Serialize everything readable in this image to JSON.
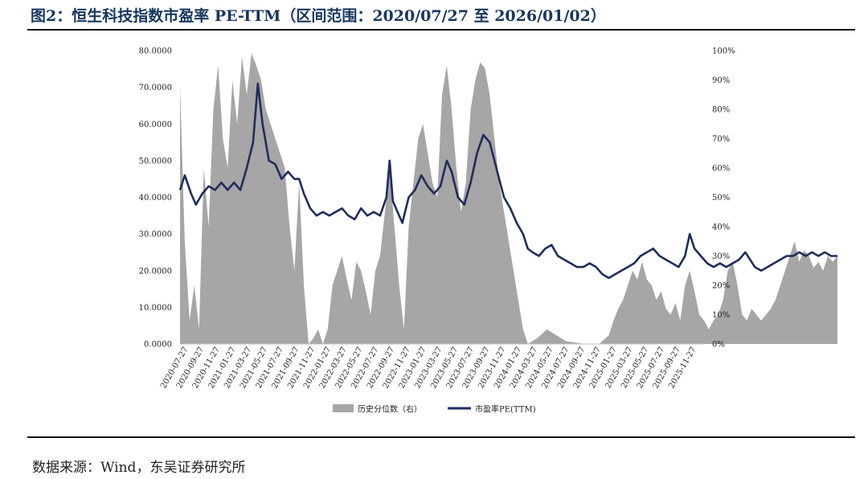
{
  "header": {
    "title": "图2：恒生科技指数市盈率 PE-TTM（区间范围：2020/07/27 至 2026/01/02）"
  },
  "footer": {
    "source": "数据来源：Wind，东吴证券研究所"
  },
  "chart_data": {
    "type": "line+area",
    "title": "恒生科技指数市盈率 PE-TTM（区间范围：2020/07/27 至 2026/01/02）",
    "ylim_left": [
      0,
      80
    ],
    "ylim_right": [
      0,
      100
    ],
    "left_ticks": [
      "0.0000",
      "10.0000",
      "20.0000",
      "30.0000",
      "40.0000",
      "50.0000",
      "60.0000",
      "70.0000",
      "80.0000"
    ],
    "right_ticks": [
      "0%",
      "10%",
      "20%",
      "30%",
      "40%",
      "50%",
      "60%",
      "70%",
      "80%",
      "90%",
      "100%"
    ],
    "x_ticks": [
      "2020-07-27",
      "2020-09-27",
      "2020-11-27",
      "2021-01-27",
      "2021-03-27",
      "2021-05-27",
      "2021-07-27",
      "2021-09-27",
      "2021-11-27",
      "2022-01-27",
      "2022-03-27",
      "2022-05-27",
      "2022-07-27",
      "2022-09-27",
      "2022-11-27",
      "2023-01-27",
      "2023-03-27",
      "2023-05-27",
      "2023-07-27",
      "2023-09-27",
      "2023-11-27",
      "2024-01-27",
      "2024-03-27",
      "2024-05-27",
      "2024-07-27",
      "2024-09-27",
      "2024-11-27",
      "2025-01-27",
      "2025-03-27",
      "2025-05-27",
      "2025-07-27",
      "2025-09-27",
      "2025-11-27"
    ],
    "legend": [
      "历史分位数（右）",
      "市盈率PE(TTM)"
    ],
    "series": [
      {
        "name": "市盈率PE(TTM)",
        "axis": "left",
        "color": "#1f2d5c",
        "points": [
          [
            0,
            42
          ],
          [
            0.3,
            46
          ],
          [
            0.7,
            41
          ],
          [
            1.0,
            38
          ],
          [
            1.4,
            41
          ],
          [
            1.8,
            43
          ],
          [
            2.2,
            42
          ],
          [
            2.6,
            44
          ],
          [
            3.0,
            42
          ],
          [
            3.4,
            44
          ],
          [
            3.8,
            42
          ],
          [
            4.2,
            48
          ],
          [
            4.6,
            55
          ],
          [
            4.9,
            71
          ],
          [
            5.2,
            60
          ],
          [
            5.6,
            50
          ],
          [
            6.0,
            49
          ],
          [
            6.4,
            45
          ],
          [
            6.8,
            47
          ],
          [
            7.2,
            45
          ],
          [
            7.5,
            45
          ],
          [
            7.8,
            41
          ],
          [
            8.2,
            37
          ],
          [
            8.6,
            35
          ],
          [
            9.0,
            36
          ],
          [
            9.4,
            35
          ],
          [
            9.8,
            36
          ],
          [
            10.2,
            37
          ],
          [
            10.6,
            35
          ],
          [
            11.0,
            34
          ],
          [
            11.4,
            37
          ],
          [
            11.8,
            35
          ],
          [
            12.2,
            36
          ],
          [
            12.6,
            35
          ],
          [
            13.0,
            40
          ],
          [
            13.2,
            50
          ],
          [
            13.4,
            39
          ],
          [
            13.7,
            36
          ],
          [
            14.0,
            33
          ],
          [
            14.4,
            40
          ],
          [
            14.8,
            42
          ],
          [
            15.2,
            46
          ],
          [
            15.6,
            43
          ],
          [
            16.0,
            41
          ],
          [
            16.4,
            43
          ],
          [
            16.8,
            50
          ],
          [
            17.1,
            47
          ],
          [
            17.5,
            40
          ],
          [
            17.9,
            38
          ],
          [
            18.3,
            44
          ],
          [
            18.7,
            52
          ],
          [
            19.1,
            57
          ],
          [
            19.5,
            55
          ],
          [
            19.8,
            50
          ],
          [
            20.1,
            45
          ],
          [
            20.4,
            40
          ],
          [
            20.8,
            37
          ],
          [
            21.2,
            33
          ],
          [
            21.6,
            30
          ],
          [
            21.9,
            26
          ],
          [
            22.2,
            25
          ],
          [
            22.6,
            24
          ],
          [
            23.0,
            26
          ],
          [
            23.4,
            27
          ],
          [
            23.8,
            24
          ],
          [
            24.2,
            23
          ],
          [
            24.6,
            22
          ],
          [
            25.0,
            21
          ],
          [
            25.4,
            21
          ],
          [
            25.8,
            22
          ],
          [
            26.2,
            21
          ],
          [
            26.6,
            19
          ],
          [
            27.0,
            18
          ],
          [
            27.4,
            19
          ],
          [
            27.8,
            20
          ],
          [
            28.2,
            21
          ],
          [
            28.6,
            22
          ],
          [
            29.0,
            24
          ],
          [
            29.4,
            25
          ],
          [
            29.8,
            26
          ],
          [
            30.2,
            24
          ],
          [
            30.6,
            23
          ],
          [
            31.0,
            22
          ],
          [
            31.4,
            21
          ],
          [
            31.8,
            24
          ],
          [
            32.1,
            30
          ],
          [
            32.4,
            26
          ],
          [
            32.8,
            24
          ],
          [
            33.2,
            22
          ],
          [
            33.6,
            21
          ],
          [
            34.0,
            22
          ],
          [
            34.4,
            21
          ],
          [
            34.8,
            22
          ],
          [
            35.2,
            23
          ],
          [
            35.6,
            25
          ],
          [
            35.9,
            23
          ],
          [
            36.2,
            21
          ],
          [
            36.6,
            20
          ],
          [
            37.0,
            21
          ],
          [
            37.4,
            22
          ],
          [
            37.8,
            23
          ],
          [
            38.2,
            24
          ],
          [
            38.6,
            24
          ],
          [
            39.0,
            25
          ],
          [
            39.4,
            24
          ],
          [
            39.8,
            25
          ],
          [
            40.2,
            24
          ],
          [
            40.6,
            25
          ],
          [
            41.0,
            24
          ],
          [
            41.4,
            24
          ]
        ]
      },
      {
        "name": "历史分位数（右）",
        "axis": "right",
        "color": "#a6a6a6",
        "points": [
          [
            0,
            88
          ],
          [
            0.3,
            35
          ],
          [
            0.6,
            8
          ],
          [
            0.9,
            20
          ],
          [
            1.2,
            5
          ],
          [
            1.5,
            60
          ],
          [
            1.8,
            40
          ],
          [
            2.1,
            80
          ],
          [
            2.4,
            95
          ],
          [
            2.7,
            70
          ],
          [
            3.0,
            60
          ],
          [
            3.3,
            90
          ],
          [
            3.6,
            75
          ],
          [
            3.9,
            98
          ],
          [
            4.2,
            85
          ],
          [
            4.5,
            99
          ],
          [
            4.8,
            95
          ],
          [
            5.1,
            90
          ],
          [
            5.4,
            80
          ],
          [
            5.7,
            75
          ],
          [
            6.0,
            70
          ],
          [
            6.3,
            65
          ],
          [
            6.6,
            60
          ],
          [
            6.9,
            40
          ],
          [
            7.2,
            25
          ],
          [
            7.5,
            55
          ],
          [
            7.8,
            20
          ],
          [
            8.1,
            0
          ],
          [
            8.4,
            2
          ],
          [
            8.7,
            5
          ],
          [
            9.0,
            0
          ],
          [
            9.3,
            5
          ],
          [
            9.6,
            20
          ],
          [
            9.9,
            25
          ],
          [
            10.2,
            30
          ],
          [
            10.5,
            22
          ],
          [
            10.8,
            15
          ],
          [
            11.1,
            28
          ],
          [
            11.4,
            25
          ],
          [
            11.7,
            18
          ],
          [
            12.0,
            10
          ],
          [
            12.3,
            25
          ],
          [
            12.6,
            30
          ],
          [
            12.9,
            45
          ],
          [
            13.2,
            60
          ],
          [
            13.5,
            40
          ],
          [
            13.8,
            20
          ],
          [
            14.1,
            5
          ],
          [
            14.4,
            40
          ],
          [
            14.7,
            55
          ],
          [
            15.0,
            70
          ],
          [
            15.3,
            75
          ],
          [
            15.6,
            65
          ],
          [
            15.9,
            55
          ],
          [
            16.2,
            50
          ],
          [
            16.5,
            85
          ],
          [
            16.8,
            95
          ],
          [
            17.1,
            80
          ],
          [
            17.4,
            60
          ],
          [
            17.7,
            45
          ],
          [
            18.0,
            55
          ],
          [
            18.3,
            80
          ],
          [
            18.6,
            90
          ],
          [
            18.9,
            96
          ],
          [
            19.2,
            94
          ],
          [
            19.5,
            85
          ],
          [
            19.8,
            70
          ],
          [
            20.1,
            55
          ],
          [
            20.4,
            45
          ],
          [
            20.7,
            35
          ],
          [
            21.0,
            25
          ],
          [
            21.3,
            15
          ],
          [
            21.6,
            5
          ],
          [
            21.9,
            0
          ],
          [
            22.5,
            2
          ],
          [
            23.1,
            5
          ],
          [
            23.7,
            3
          ],
          [
            24.3,
            1
          ],
          [
            24.9,
            0.5
          ],
          [
            25.5,
            0
          ],
          [
            26.4,
            0
          ],
          [
            27.0,
            3
          ],
          [
            27.3,
            8
          ],
          [
            27.6,
            12
          ],
          [
            27.9,
            15
          ],
          [
            28.2,
            20
          ],
          [
            28.5,
            25
          ],
          [
            28.8,
            22
          ],
          [
            29.1,
            28
          ],
          [
            29.4,
            22
          ],
          [
            29.7,
            20
          ],
          [
            30.0,
            15
          ],
          [
            30.3,
            18
          ],
          [
            30.6,
            12
          ],
          [
            30.9,
            10
          ],
          [
            31.2,
            14
          ],
          [
            31.5,
            8
          ],
          [
            31.8,
            20
          ],
          [
            32.1,
            25
          ],
          [
            32.4,
            18
          ],
          [
            32.7,
            10
          ],
          [
            33.0,
            8
          ],
          [
            33.3,
            5
          ],
          [
            33.6,
            8
          ],
          [
            33.9,
            10
          ],
          [
            34.2,
            15
          ],
          [
            34.5,
            25
          ],
          [
            34.8,
            28
          ],
          [
            35.1,
            20
          ],
          [
            35.4,
            10
          ],
          [
            35.7,
            8
          ],
          [
            36.0,
            12
          ],
          [
            36.3,
            10
          ],
          [
            36.6,
            8
          ],
          [
            36.9,
            10
          ],
          [
            37.2,
            12
          ],
          [
            37.5,
            15
          ],
          [
            37.8,
            20
          ],
          [
            38.1,
            25
          ],
          [
            38.4,
            30
          ],
          [
            38.7,
            35
          ],
          [
            39.0,
            28
          ],
          [
            39.3,
            32
          ],
          [
            39.6,
            30
          ],
          [
            39.9,
            26
          ],
          [
            40.2,
            28
          ],
          [
            40.5,
            25
          ],
          [
            40.8,
            30
          ],
          [
            41.1,
            28
          ],
          [
            41.4,
            30
          ]
        ]
      }
    ]
  }
}
